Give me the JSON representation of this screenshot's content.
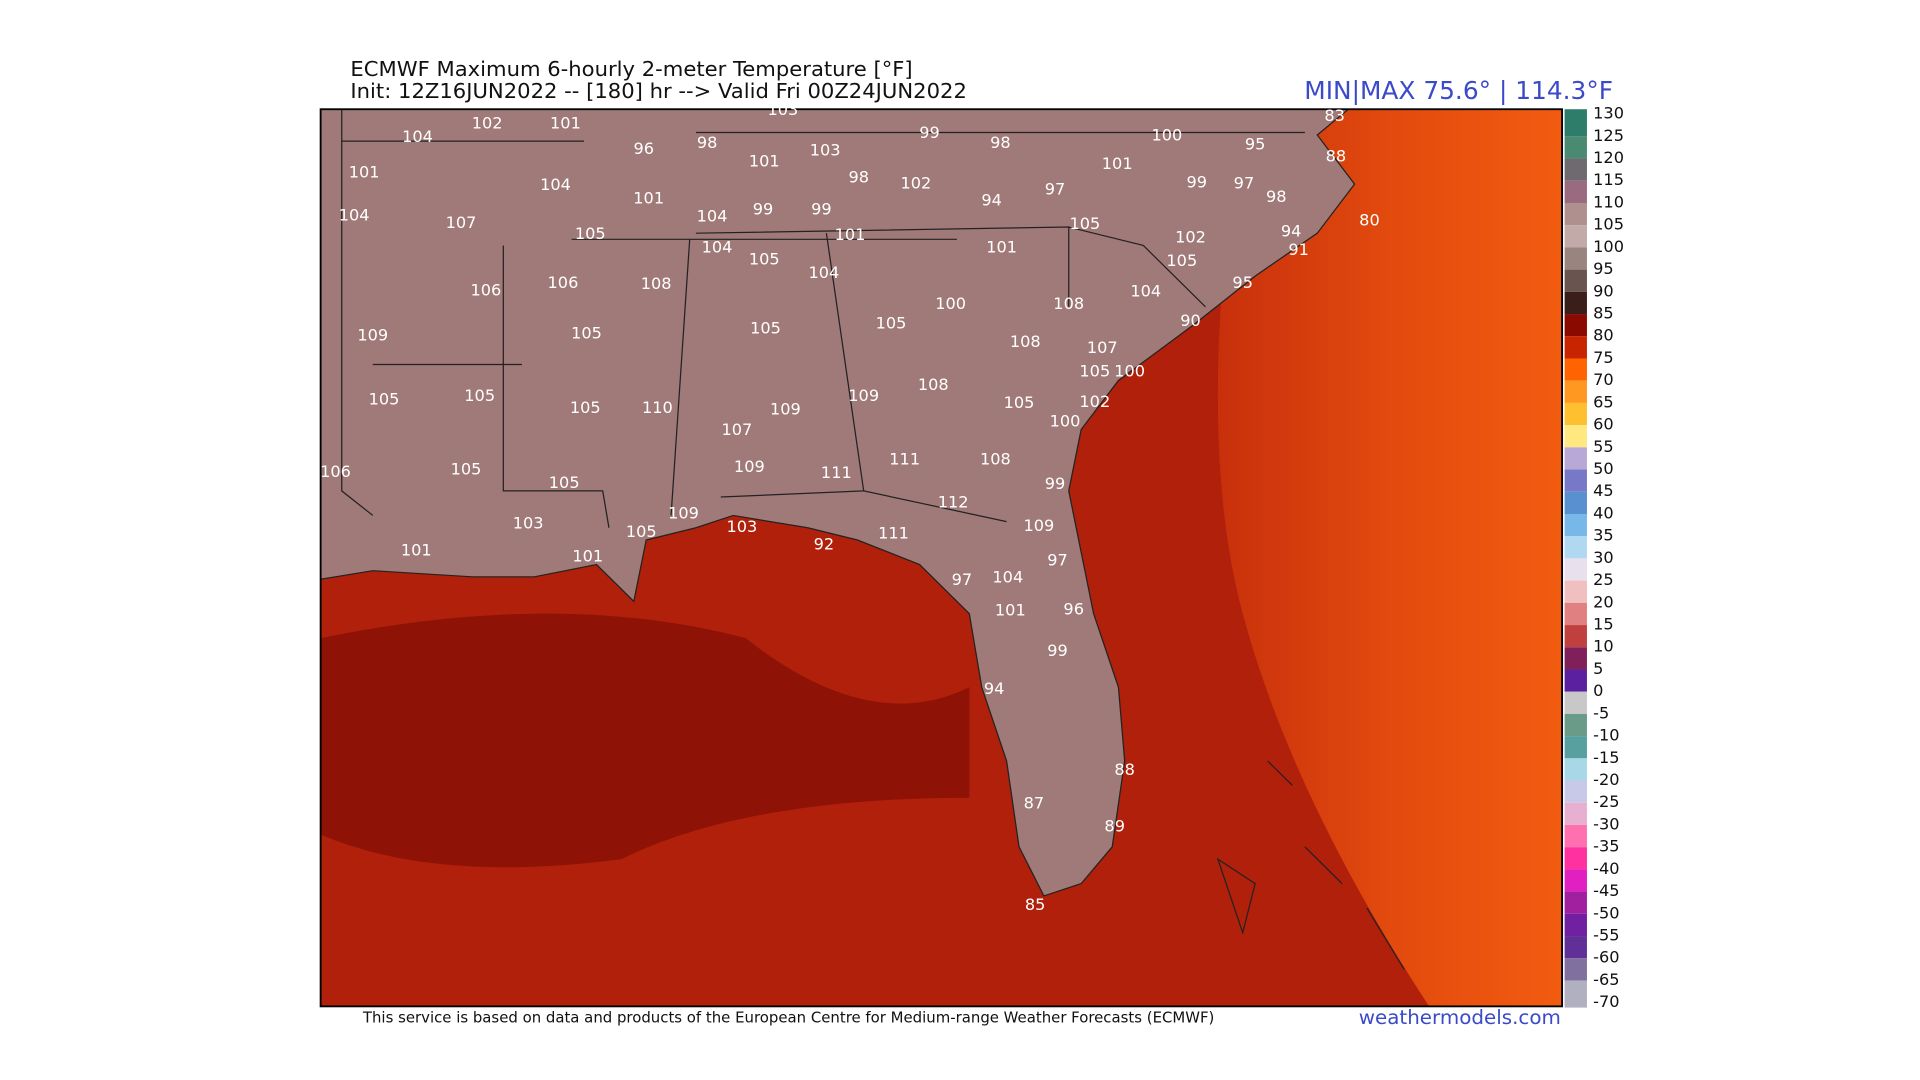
{
  "title": "ECMWF Maximum 6-hourly 2-meter Temperature [°F]",
  "subtitle": "Init: 12Z16JUN2022 -- [180] hr --> Valid Fri 00Z24JUN2022",
  "minmax": "MIN|MAX 75.6° | 114.3°F",
  "footer": "This service is based on data and products of the European Centre for Medium-range Weather Forecasts (ECMWF)",
  "brand": "weathermodels.com",
  "stations": [
    104,
    102,
    101,
    103,
    99,
    98,
    100,
    95,
    83,
    88,
    101,
    96,
    98,
    101,
    103,
    98,
    102,
    94,
    97,
    101,
    99,
    97,
    98,
    80,
    104,
    101,
    104,
    107,
    104,
    99,
    99,
    105,
    101,
    105,
    102,
    94,
    91,
    104,
    105,
    101,
    105,
    104,
    108,
    106,
    106,
    104,
    95,
    100,
    108,
    90,
    109,
    105,
    105,
    105,
    108,
    107,
    105,
    100,
    105,
    105,
    105,
    110,
    109,
    109,
    108,
    105,
    102,
    100,
    107,
    106,
    105,
    105,
    109,
    111,
    111,
    108,
    99,
    112,
    103,
    109,
    105,
    103,
    92,
    111,
    109,
    101,
    101,
    97,
    97,
    104,
    101,
    96,
    99,
    94,
    88,
    87,
    89,
    85
  ],
  "colorbar": {
    "ticks": [
      130,
      125,
      120,
      115,
      110,
      105,
      100,
      95,
      90,
      85,
      80,
      75,
      70,
      65,
      60,
      55,
      50,
      45,
      40,
      35,
      30,
      25,
      20,
      15,
      10,
      5,
      0,
      -5,
      -10,
      -15,
      -20,
      -25,
      -30,
      -35,
      -40,
      -45,
      -50,
      -55,
      -60,
      -65,
      -70
    ],
    "colors": [
      "#2e7d6b",
      "#4a8a72",
      "#6e6a70",
      "#9a6a80",
      "#b0908f",
      "#c2aaa8",
      "#9a8480",
      "#6a5450",
      "#3a1e1a",
      "#8b0a00",
      "#c82400",
      "#ff6400",
      "#ff9820",
      "#ffc030",
      "#ffe880",
      "#b8a8d8",
      "#7878c8",
      "#5890d0",
      "#78b8e8",
      "#b0d8f0",
      "#e8e0ec",
      "#f0c0c0",
      "#e08080",
      "#c04040",
      "#80205a",
      "#5a20a0",
      "#c8c8c8",
      "#6a9a88",
      "#58a0a0",
      "#a8d8e8",
      "#c8c8e8",
      "#e8b0d0",
      "#ff70b0",
      "#ff30a0",
      "#e020c0",
      "#a020a0",
      "#7020a0",
      "#603098",
      "#8070a0",
      "#b0b0c0"
    ]
  }
}
